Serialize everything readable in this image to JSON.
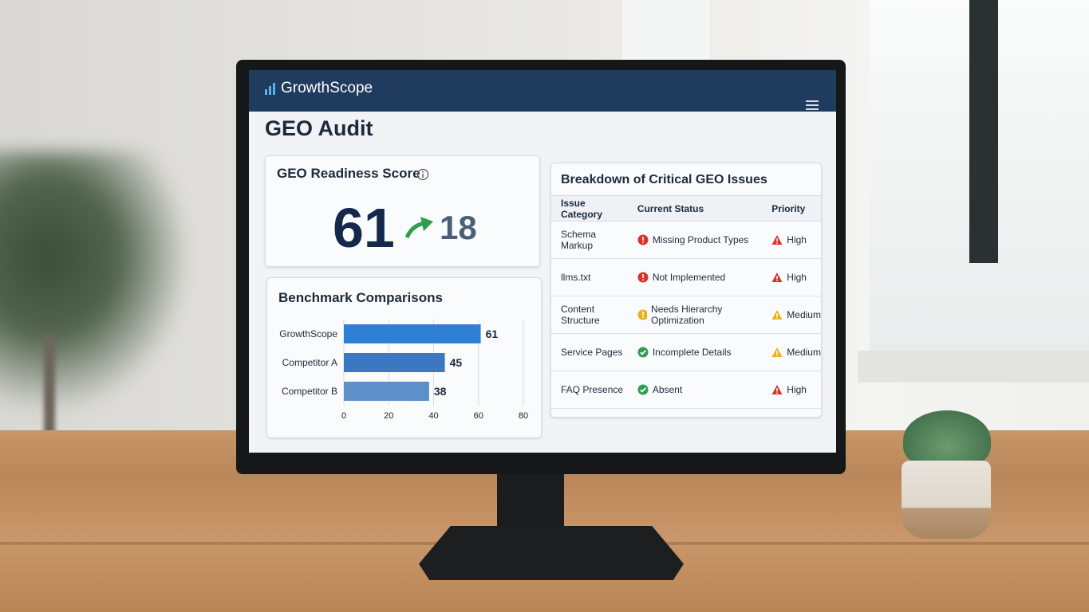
{
  "header": {
    "brand": "GrowthScope"
  },
  "page": {
    "title": "GEO Audit"
  },
  "score_card": {
    "title": "GEO Readiness Score",
    "score": 61,
    "change": 18
  },
  "chart_data": {
    "type": "bar",
    "orientation": "horizontal",
    "title": "Benchmark Comparisons",
    "categories": [
      "GrowthScope",
      "Competitor A",
      "Competitor B"
    ],
    "values": [
      61,
      45,
      38
    ],
    "colors": [
      "#2f7fd4",
      "#3b78bf",
      "#5d8fc8"
    ],
    "xlim": [
      0,
      80
    ],
    "xticks": [
      0,
      20,
      40,
      60,
      80
    ],
    "grid": true
  },
  "issues_table": {
    "title": "Breakdown of Critical GEO Issues",
    "columns": [
      "Issue Category",
      "Current Status",
      "Priority"
    ],
    "rows": [
      {
        "category": "Schema Markup",
        "status": "Missing Product Types",
        "status_icon": "alert",
        "status_color": "#d9342b",
        "priority": "High",
        "priority_color": "#d9342b"
      },
      {
        "category": "llms.txt",
        "status": "Not Implemented",
        "status_icon": "alert",
        "status_color": "#d9342b",
        "priority": "High",
        "priority_color": "#d9342b"
      },
      {
        "category": "Content Structure",
        "status": "Needs Hierarchy Optimization",
        "status_icon": "alert",
        "status_color": "#e9b21c",
        "priority": "Medium",
        "priority_color": "#e9b21c"
      },
      {
        "category": "Service Pages",
        "status": "Incomplete Details",
        "status_icon": "check",
        "status_color": "#2e9e4f",
        "priority": "Medium",
        "priority_color": "#e9b21c"
      },
      {
        "category": "FAQ Presence",
        "status": "Absent",
        "status_icon": "check",
        "status_color": "#2e9e4f",
        "priority": "High",
        "priority_color": "#d9342b"
      }
    ]
  }
}
